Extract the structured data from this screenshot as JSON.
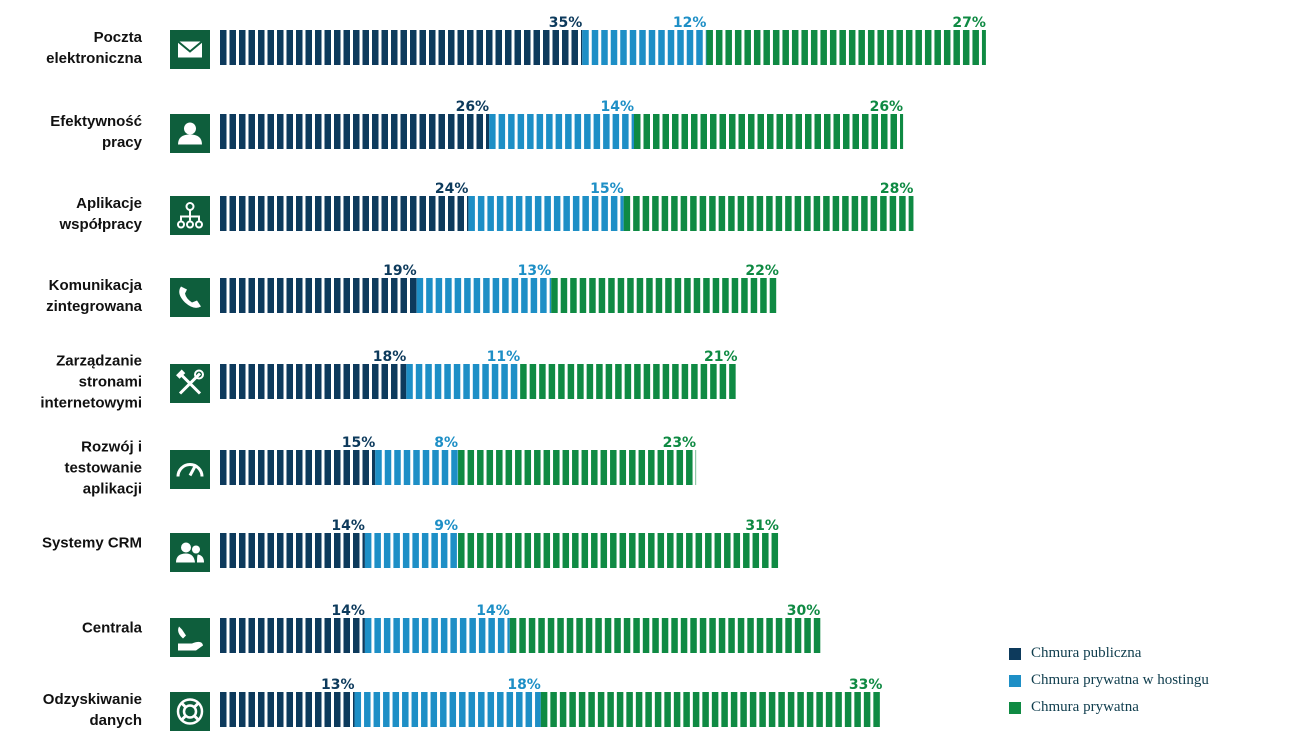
{
  "chart_data": {
    "type": "bar",
    "stacked": true,
    "orientation": "horizontal",
    "categories": [
      [
        "Poczta",
        "elektroniczna"
      ],
      [
        "Efektywność",
        "pracy"
      ],
      [
        "Aplikacje",
        "współpracy"
      ],
      [
        "Komunikacja",
        "zintegrowana"
      ],
      [
        "Zarządzanie",
        "stronami",
        "internetowymi"
      ],
      [
        "Rozwój i",
        "testowanie",
        "aplikacji"
      ],
      [
        "Systemy CRM"
      ],
      [
        "Centrala"
      ],
      [
        "Odzyskiwanie",
        "danych"
      ]
    ],
    "category_icons": [
      "envelope-icon",
      "person-icon",
      "org-chart-icon",
      "phone-icon",
      "tools-icon",
      "speedometer-icon",
      "users-icon",
      "phone-hand-icon",
      "lifebuoy-icon"
    ],
    "series": [
      {
        "name": "Chmura publiczna",
        "color": "#0d3a5c",
        "values": [
          35,
          26,
          24,
          19,
          18,
          15,
          14,
          14,
          13
        ]
      },
      {
        "name": "Chmura prywatna w hostingu",
        "color": "#1e8fc6",
        "values": [
          12,
          14,
          15,
          13,
          11,
          8,
          9,
          14,
          18
        ]
      },
      {
        "name": "Chmura prywatna",
        "color": "#0f8a43",
        "values": [
          27,
          26,
          28,
          22,
          21,
          23,
          31,
          30,
          33
        ]
      }
    ],
    "value_suffix": "%",
    "legend_position": "bottom-right",
    "icon_background": "#0e5e3c"
  }
}
